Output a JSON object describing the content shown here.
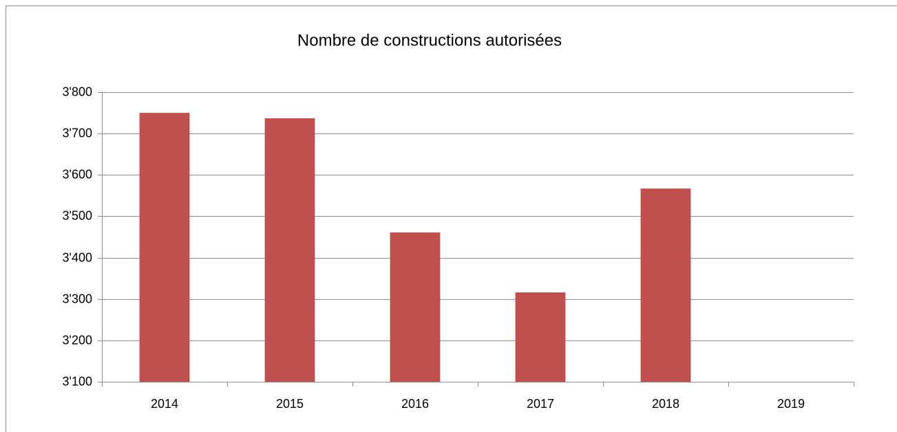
{
  "chart_data": {
    "type": "bar",
    "title": "Nombre de constructions autorisées",
    "categories": [
      "2014",
      "2015",
      "2016",
      "2017",
      "2018",
      "2019"
    ],
    "values": [
      3750,
      3737,
      3461,
      3316,
      3567,
      null
    ],
    "color": "#c0504d",
    "ylim": [
      3100,
      3800
    ],
    "yticks": [
      {
        "value": 3100,
        "label": "3'100"
      },
      {
        "value": 3200,
        "label": "3'200"
      },
      {
        "value": 3300,
        "label": "3'300"
      },
      {
        "value": 3400,
        "label": "3'400"
      },
      {
        "value": 3500,
        "label": "3'500"
      },
      {
        "value": 3600,
        "label": "3'600"
      },
      {
        "value": 3700,
        "label": "3'700"
      },
      {
        "value": 3800,
        "label": "3'800"
      }
    ],
    "grid": true
  }
}
